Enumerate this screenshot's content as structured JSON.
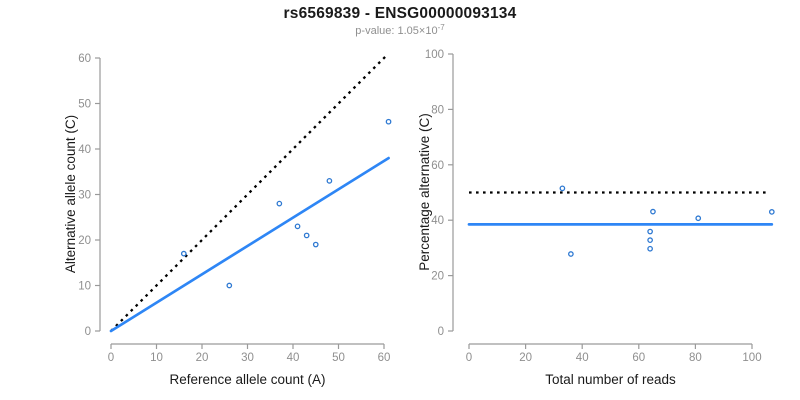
{
  "header": {
    "title": "rs6569839 - ENSG00000093134",
    "subtitle_base": "p-value: 1.05×10",
    "subtitle_exponent": "-7"
  },
  "colors": {
    "accent_blue": "#2e86f5",
    "point_blue": "#2e79d2",
    "dotted_black": "#000000",
    "axis_gray": "#9a9a9a",
    "tick_label_gray": "#8f8f8f",
    "text_black": "#1a1a1a",
    "subtitle_gray": "#8f8f8f",
    "background": "#ffffff"
  },
  "chart_data": [
    {
      "type": "scatter",
      "title": "",
      "xlabel": "Reference allele count (A)",
      "ylabel": "Alternative allele count (C)",
      "xlim": [
        0,
        61
      ],
      "ylim": [
        0,
        61
      ],
      "xticks": [
        0,
        10,
        20,
        30,
        40,
        50,
        60
      ],
      "yticks": [
        0,
        10,
        20,
        30,
        40,
        50,
        60
      ],
      "grid": false,
      "legend": "none",
      "points": [
        [
          16,
          17
        ],
        [
          26,
          10
        ],
        [
          37,
          28
        ],
        [
          41,
          23
        ],
        [
          43,
          21
        ],
        [
          45,
          19
        ],
        [
          48,
          33
        ],
        [
          61,
          46
        ]
      ],
      "lines": [
        {
          "name": "identity-line",
          "style": "dotted",
          "color": "#000000",
          "x": [
            0,
            60.5
          ],
          "y": [
            0,
            60.5
          ]
        },
        {
          "name": "regression-line",
          "style": "solid",
          "color": "#2e86f5",
          "x": [
            0,
            61
          ],
          "y": [
            0,
            38
          ]
        }
      ]
    },
    {
      "type": "scatter",
      "title": "",
      "xlabel": "Total number of reads",
      "ylabel": "Percentage alternative (C)",
      "xlim": [
        0,
        107
      ],
      "ylim": [
        0,
        100
      ],
      "xticks": [
        0,
        20,
        40,
        60,
        80,
        100
      ],
      "yticks": [
        0,
        20,
        40,
        60,
        80,
        100
      ],
      "grid": false,
      "legend": "none",
      "points": [
        [
          33,
          51.5
        ],
        [
          36,
          27.8
        ],
        [
          65,
          43.1
        ],
        [
          64,
          35.9
        ],
        [
          64,
          32.8
        ],
        [
          64,
          29.7
        ],
        [
          81,
          40.7
        ],
        [
          107,
          43.0
        ]
      ],
      "lines": [
        {
          "name": "fifty-percent-line",
          "style": "dotted",
          "color": "#000000",
          "x": [
            0,
            106
          ],
          "y": [
            50,
            50
          ]
        },
        {
          "name": "mean-percentage-line",
          "style": "solid",
          "color": "#2e86f5",
          "x": [
            0,
            107
          ],
          "y": [
            38.5,
            38.5
          ]
        }
      ]
    }
  ]
}
